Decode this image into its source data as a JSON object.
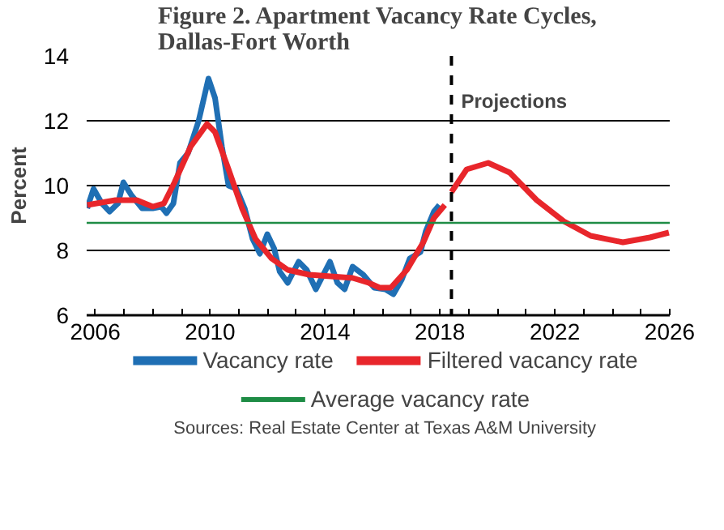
{
  "chart_data": {
    "type": "line",
    "title": "Figure 2. Apartment Vacancy Rate Cycles, Dallas-Fort Worth",
    "ylabel": "Percent",
    "xlim": [
      2005.7,
      2026
    ],
    "ylim": [
      6,
      14
    ],
    "xticks": [
      2006,
      {
        "value": 2007,
        "label": null
      },
      {
        "value": 2008,
        "label": null
      },
      {
        "value": 2009,
        "label": null
      },
      2010,
      {
        "value": 2011,
        "label": null
      },
      {
        "value": 2012,
        "label": null
      },
      {
        "value": 2013,
        "label": null
      },
      2014,
      {
        "value": 2015,
        "label": null
      },
      {
        "value": 2016,
        "label": null
      },
      {
        "value": 2017,
        "label": null
      },
      2018,
      {
        "value": 2019,
        "label": null
      },
      {
        "value": 2020,
        "label": null
      },
      {
        "value": 2021,
        "label": null
      },
      2022,
      {
        "value": 2023,
        "label": null
      },
      {
        "value": 2024,
        "label": null
      },
      {
        "value": 2025,
        "label": null
      },
      2026
    ],
    "yticks": [
      6,
      8,
      10,
      12,
      14
    ],
    "grid": "y",
    "legend": "bottom",
    "line_style": "solid",
    "marker": "none",
    "series": [
      {
        "name": "Vacancy rate",
        "color": "#1f6fb4",
        "x": [
          2005.72,
          2005.94,
          2006.23,
          2006.5,
          2006.79,
          2006.98,
          2007.26,
          2007.63,
          2008.0,
          2008.3,
          2008.48,
          2008.72,
          2008.95,
          2009.23,
          2009.6,
          2009.94,
          2010.17,
          2010.41,
          2010.64,
          2010.92,
          2011.2,
          2011.48,
          2011.73,
          2011.99,
          2012.23,
          2012.42,
          2012.7,
          2013.08,
          2013.36,
          2013.68,
          2014.17,
          2014.43,
          2014.68,
          2014.96,
          2015.33,
          2015.71,
          2016.1,
          2016.38,
          2016.67,
          2016.95,
          2017.32,
          2017.51,
          2017.79,
          2017.98
        ],
        "values": [
          9.3,
          9.9,
          9.45,
          9.2,
          9.45,
          10.1,
          9.7,
          9.3,
          9.3,
          9.35,
          9.15,
          9.45,
          10.7,
          11.0,
          12.0,
          13.3,
          12.7,
          11.2,
          10.0,
          9.9,
          9.3,
          8.35,
          7.9,
          8.5,
          8.05,
          7.35,
          7.0,
          7.65,
          7.4,
          6.8,
          7.65,
          7.0,
          6.8,
          7.5,
          7.25,
          6.85,
          6.8,
          6.65,
          7.1,
          7.75,
          7.95,
          8.6,
          9.2,
          9.4
        ]
      },
      {
        "name": "Filtered vacancy rate",
        "color": "#e8262b",
        "x": [
          2005.72,
          2006.7,
          2007.45,
          2008.0,
          2008.39,
          2008.76,
          2009.32,
          2009.89,
          2010.17,
          2010.64,
          2011.11,
          2011.58,
          2012.14,
          2012.7,
          2013.45,
          2014.2,
          2014.96,
          2015.52,
          2015.9,
          2016.29,
          2016.85,
          2017.42,
          2017.79,
          2018.17,
          2018.3,
          2018.4,
          2018.93,
          2019.68,
          2020.43,
          2021.37,
          2022.31,
          2023.25,
          2024.37,
          2025.31,
          2025.97
        ],
        "values": [
          9.4,
          9.55,
          9.55,
          9.35,
          9.45,
          10.1,
          11.2,
          11.9,
          11.65,
          10.5,
          9.3,
          8.35,
          7.75,
          7.4,
          7.25,
          7.2,
          7.15,
          7.0,
          6.85,
          6.85,
          7.4,
          8.25,
          9.0,
          9.4,
          null,
          9.8,
          10.5,
          10.7,
          10.4,
          9.55,
          8.9,
          8.45,
          8.25,
          8.4,
          8.55
        ]
      },
      {
        "name": "Average vacancy rate",
        "color": "#1e8c45",
        "x": [
          2005.7,
          2026
        ],
        "values": [
          8.85,
          8.85
        ]
      }
    ],
    "ref_lines": [
      {
        "axis": "x",
        "value": 2018.4,
        "label": "Projections",
        "color": "#000000",
        "line_style": "dashed"
      }
    ],
    "annotations": [
      "Sources: Real Estate Center at Texas A&M University"
    ]
  }
}
